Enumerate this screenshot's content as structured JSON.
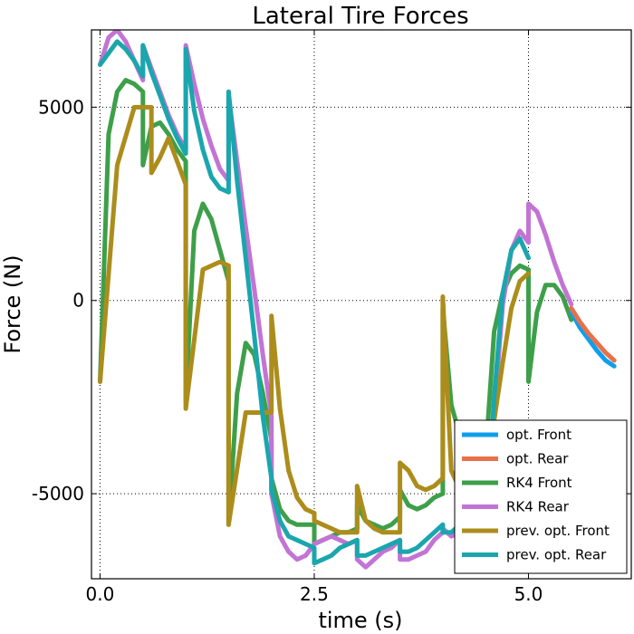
{
  "chart_data": {
    "type": "line",
    "title": "Lateral Tire Forces",
    "xlabel": "time (s)",
    "ylabel": "Force (N)",
    "xlim": [
      -0.1,
      6.2
    ],
    "ylim": [
      -7200,
      7000
    ],
    "xticks": [
      0.0,
      2.5,
      5.0
    ],
    "xtick_labels": [
      "0.0",
      "2.5",
      "5.0"
    ],
    "yticks": [
      -5000,
      0,
      5000
    ],
    "ytick_labels": [
      "-5000",
      "0",
      "5000"
    ],
    "grid": true,
    "legend_position": "lower-right",
    "series": [
      {
        "name": "opt. Front",
        "color": "#0e9fec",
        "x": [
          5.5,
          5.6,
          5.7,
          5.8,
          5.9,
          6.0
        ],
        "y": [
          -300,
          -700,
          -1000,
          -1300,
          -1550,
          -1700
        ]
      },
      {
        "name": "opt. Rear",
        "color": "#e8704a",
        "x": [
          5.5,
          5.6,
          5.7,
          5.8,
          5.9,
          6.0
        ],
        "y": [
          -200,
          -550,
          -850,
          -1100,
          -1350,
          -1550
        ]
      },
      {
        "name": "RK4 Front",
        "color": "#3e9f4a",
        "x": [
          0.0,
          0.1,
          0.2,
          0.3,
          0.4,
          0.5,
          0.5,
          0.6,
          0.7,
          0.8,
          0.9,
          1.0,
          1.0,
          1.1,
          1.2,
          1.3,
          1.4,
          1.5,
          1.5,
          1.6,
          1.7,
          1.8,
          1.9,
          2.0,
          2.0,
          2.1,
          2.2,
          2.3,
          2.4,
          2.5,
          2.5,
          2.6,
          2.7,
          2.8,
          2.9,
          3.0,
          3.0,
          3.1,
          3.2,
          3.3,
          3.4,
          3.5,
          3.5,
          3.6,
          3.7,
          3.8,
          3.9,
          4.0,
          4.0,
          4.1,
          4.2,
          4.3,
          4.4,
          4.5,
          4.5,
          4.6,
          4.7,
          4.8,
          4.9,
          5.0,
          5.0,
          5.1,
          5.2,
          5.3,
          5.4,
          5.5
        ],
        "y": [
          -2100,
          4300,
          5400,
          5700,
          5600,
          5400,
          3500,
          4500,
          4600,
          4300,
          3900,
          3600,
          -2600,
          1800,
          2500,
          2100,
          1300,
          500,
          -5800,
          -2400,
          -1100,
          -1400,
          -2400,
          -3600,
          -4600,
          -5400,
          -5700,
          -5800,
          -5800,
          -5800,
          -6300,
          -6200,
          -6100,
          -6000,
          -6000,
          -5900,
          -5300,
          -5700,
          -5800,
          -5900,
          -5800,
          -5600,
          -4900,
          -5300,
          -5400,
          -5300,
          -5100,
          -5000,
          -200,
          -2700,
          -3500,
          -4000,
          -4100,
          -4300,
          -4000,
          -800,
          200,
          700,
          900,
          800,
          -2100,
          -300,
          400,
          400,
          100,
          -500
        ]
      },
      {
        "name": "RK4 Rear",
        "color": "#c274d4",
        "x": [
          0.0,
          0.1,
          0.2,
          0.3,
          0.4,
          0.5,
          0.5,
          0.6,
          0.7,
          0.8,
          0.9,
          1.0,
          1.0,
          1.1,
          1.2,
          1.3,
          1.4,
          1.5,
          1.5,
          1.6,
          1.7,
          1.8,
          1.9,
          2.0,
          2.0,
          2.1,
          2.2,
          2.3,
          2.4,
          2.5,
          2.5,
          2.6,
          2.7,
          2.8,
          2.9,
          3.0,
          3.0,
          3.1,
          3.2,
          3.3,
          3.4,
          3.5,
          3.5,
          3.6,
          3.7,
          3.8,
          3.9,
          4.0,
          4.0,
          4.1,
          4.2,
          4.3,
          4.4,
          4.5,
          4.5,
          4.6,
          4.7,
          4.8,
          4.9,
          5.0,
          5.0,
          5.1,
          5.2,
          5.3,
          5.4,
          5.5
        ],
        "y": [
          6100,
          6800,
          7000,
          6700,
          6200,
          5700,
          6600,
          6000,
          5400,
          4800,
          4300,
          3900,
          6600,
          5600,
          4700,
          4000,
          3400,
          3100,
          5300,
          3600,
          1900,
          300,
          -1400,
          -3000,
          -5000,
          -6100,
          -6500,
          -6700,
          -6600,
          -6300,
          -6300,
          -6200,
          -6100,
          -6200,
          -6300,
          -6200,
          -6700,
          -6900,
          -6700,
          -6500,
          -6400,
          -6200,
          -6700,
          -6700,
          -6600,
          -6500,
          -6200,
          -6000,
          -5900,
          -6100,
          -6000,
          -5700,
          -5400,
          -5000,
          -6400,
          -2900,
          -100,
          1300,
          1800,
          1500,
          2500,
          2300,
          1700,
          1000,
          400,
          -100
        ]
      },
      {
        "name": "prev. opt. Front",
        "color": "#ac8d1c",
        "x": [
          0.0,
          0.2,
          0.4,
          0.6,
          0.6,
          0.7,
          0.8,
          0.9,
          1.0,
          1.0,
          1.2,
          1.4,
          1.5,
          1.5,
          1.7,
          1.9,
          2.0,
          2.0,
          2.1,
          2.2,
          2.3,
          2.4,
          2.5,
          2.5,
          2.6,
          2.7,
          2.8,
          2.9,
          3.0,
          3.0,
          3.1,
          3.2,
          3.3,
          3.4,
          3.5,
          3.5,
          3.6,
          3.7,
          3.8,
          3.9,
          4.0,
          4.0,
          4.1,
          4.2,
          4.3,
          4.4,
          4.5,
          4.5,
          4.6,
          4.7,
          4.8,
          4.9,
          5.0
        ],
        "y": [
          -2100,
          3500,
          5000,
          5000,
          3300,
          3700,
          4200,
          3600,
          3000,
          -2800,
          800,
          1000,
          900,
          -5800,
          -2900,
          -2900,
          -2900,
          -400,
          -2800,
          -4400,
          -5100,
          -5400,
          -5500,
          -5700,
          -5800,
          -5900,
          -6000,
          -6000,
          -6000,
          -4800,
          -5700,
          -5900,
          -6000,
          -6000,
          -6000,
          -4200,
          -4400,
          -4800,
          -4900,
          -4800,
          -4600,
          100,
          -4400,
          -4900,
          -4600,
          -4100,
          -3700,
          -7000,
          -3100,
          -1600,
          -200,
          500,
          700
        ]
      },
      {
        "name": "prev. opt. Rear",
        "color": "#1aa6ad",
        "x": [
          0.0,
          0.1,
          0.2,
          0.3,
          0.4,
          0.5,
          0.5,
          0.6,
          0.7,
          0.8,
          0.9,
          1.0,
          1.0,
          1.1,
          1.2,
          1.3,
          1.4,
          1.5,
          1.5,
          1.6,
          1.7,
          1.8,
          1.9,
          2.0,
          2.0,
          2.1,
          2.2,
          2.3,
          2.4,
          2.5,
          2.5,
          2.6,
          2.7,
          2.8,
          2.9,
          3.0,
          3.0,
          3.1,
          3.2,
          3.3,
          3.4,
          3.5,
          3.5,
          3.6,
          3.7,
          3.8,
          3.9,
          4.0,
          4.0,
          4.1,
          4.2,
          4.3,
          4.4,
          4.5,
          4.5,
          4.6,
          4.7,
          4.8,
          4.9,
          5.0
        ],
        "y": [
          6100,
          6400,
          6700,
          6500,
          6200,
          5800,
          6600,
          5900,
          5300,
          4700,
          4200,
          3800,
          6500,
          4900,
          3900,
          3200,
          2900,
          2800,
          5400,
          3100,
          1100,
          -900,
          -3000,
          -4600,
          -4900,
          -5700,
          -6100,
          -6200,
          -6300,
          -6400,
          -6800,
          -6700,
          -6600,
          -6400,
          -6300,
          -6200,
          -6600,
          -6600,
          -6500,
          -6400,
          -6300,
          -6200,
          -6500,
          -6500,
          -6400,
          -6200,
          -6000,
          -5800,
          -6000,
          -6000,
          -5800,
          -5600,
          -5300,
          -5000,
          -6100,
          -2500,
          200,
          1300,
          1600,
          1100
        ]
      }
    ]
  }
}
